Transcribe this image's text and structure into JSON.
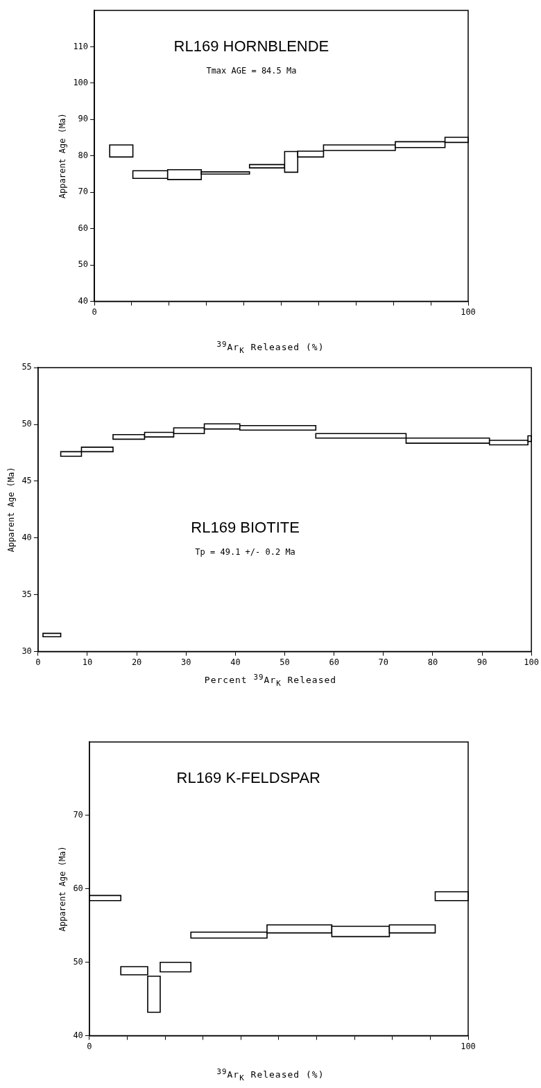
{
  "chart_data": [
    {
      "type": "histogram",
      "title": "RL169 HORNBLENDE",
      "subtitle": "Tmax AGE = 84.5 Ma",
      "xlabel": "$^{39}$Ar$_{K}$ Released (%)",
      "ylabel": "Apparent Age (Ma)",
      "color": "#000000",
      "bins": [
        4.1,
        10.3,
        19.6,
        28.6,
        41.5,
        50.9,
        54.4,
        61.3,
        80.5,
        93.8,
        100
      ],
      "base": [
        79.7,
        73.8,
        73.5,
        75.0,
        76.7,
        75.5,
        79.7,
        81.5,
        82.3,
        83.7
      ],
      "values": [
        3.3,
        2.1,
        2.7,
        0.6,
        0.9,
        5.7,
        1.6,
        1.5,
        1.6,
        1.4
      ],
      "xlim": [
        0,
        100
      ],
      "xticks": [
        0,
        {
          "value": 10,
          "label": null
        },
        {
          "value": 20,
          "label": null
        },
        {
          "value": 30,
          "label": null
        },
        {
          "value": 40,
          "label": null
        },
        {
          "value": 50,
          "label": null
        },
        {
          "value": 60,
          "label": null
        },
        {
          "value": 70,
          "label": null
        },
        {
          "value": 80,
          "label": null
        },
        {
          "value": 90,
          "label": null
        },
        100
      ],
      "ylim": [
        40,
        120
      ],
      "yticks": [
        40,
        50,
        60,
        70,
        80,
        90,
        100,
        110
      ]
    },
    {
      "type": "histogram",
      "title": "RL169 BIOTITE",
      "subtitle": "Tp = 49.1 +/- 0.2 Ma",
      "xlabel": "Percent $^{39}$Ar$_{K}$ Released",
      "ylabel": "Apparent Age (Ma)",
      "color": "#000000",
      "bins": [
        1.0,
        4.6,
        8.8,
        15.2,
        21.6,
        27.5,
        33.7,
        40.9,
        56.3,
        74.6,
        91.5,
        99.3,
        100
      ],
      "base": [
        31.3,
        47.2,
        47.6,
        48.7,
        48.9,
        49.2,
        49.6,
        49.5,
        48.8,
        48.35,
        48.2,
        48.5
      ],
      "values": [
        0.3,
        0.4,
        0.4,
        0.4,
        0.4,
        0.5,
        0.45,
        0.4,
        0.4,
        0.45,
        0.4,
        0.5
      ],
      "xlim": [
        0,
        100
      ],
      "xticks": [
        0,
        10,
        20,
        30,
        40,
        50,
        60,
        70,
        80,
        90,
        100
      ],
      "ylim": [
        30,
        55
      ],
      "yticks": [
        30,
        35,
        40,
        45,
        50,
        55
      ]
    },
    {
      "type": "histogram",
      "title": "RL169 K-FELDSPAR",
      "xlabel": "$^{39}$Ar$_{K}$ Released (%)",
      "ylabel": "Apparent Age (Ma)",
      "color": "#000000",
      "bins": [
        0,
        8.3,
        15.4,
        18.7,
        26.8,
        46.9,
        64.0,
        79.2,
        91.3,
        100
      ],
      "base": [
        58.4,
        48.3,
        43.2,
        48.7,
        53.3,
        54.0,
        53.5,
        54.0,
        58.4
      ],
      "values": [
        0.7,
        1.1,
        4.9,
        1.3,
        0.8,
        1.1,
        1.4,
        1.1,
        1.2
      ],
      "xlim": [
        0,
        100
      ],
      "xticks": [
        0,
        {
          "value": 10,
          "label": null
        },
        {
          "value": 20,
          "label": null
        },
        {
          "value": 30,
          "label": null
        },
        {
          "value": 40,
          "label": null
        },
        {
          "value": 50,
          "label": null
        },
        {
          "value": 60,
          "label": null
        },
        {
          "value": 70,
          "label": null
        },
        {
          "value": 80,
          "label": null
        },
        {
          "value": 90,
          "label": null
        },
        100
      ],
      "ylim": [
        40,
        80
      ],
      "yticks": [
        40,
        50,
        60,
        70
      ]
    }
  ]
}
